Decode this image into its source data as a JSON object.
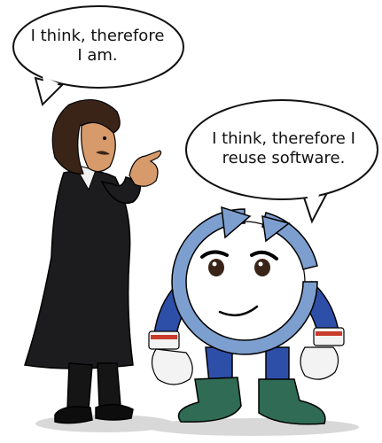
{
  "bubbles": {
    "left": {
      "text": "I think, therefore\nI am."
    },
    "right": {
      "text": "I think, therefore I\nreuse software."
    }
  },
  "colors": {
    "coat": "#1c1c1e",
    "skin": "#d79a6a",
    "hair": "#3a2418",
    "mascot_blue": "#7d9fcf",
    "mascot_dark_blue": "#2e4fa8",
    "boot_green": "#2f6b55",
    "glove": "#f3f3f3",
    "cuff_red": "#c83a2a"
  },
  "characters": [
    "philosopher",
    "reuse-mascot"
  ]
}
